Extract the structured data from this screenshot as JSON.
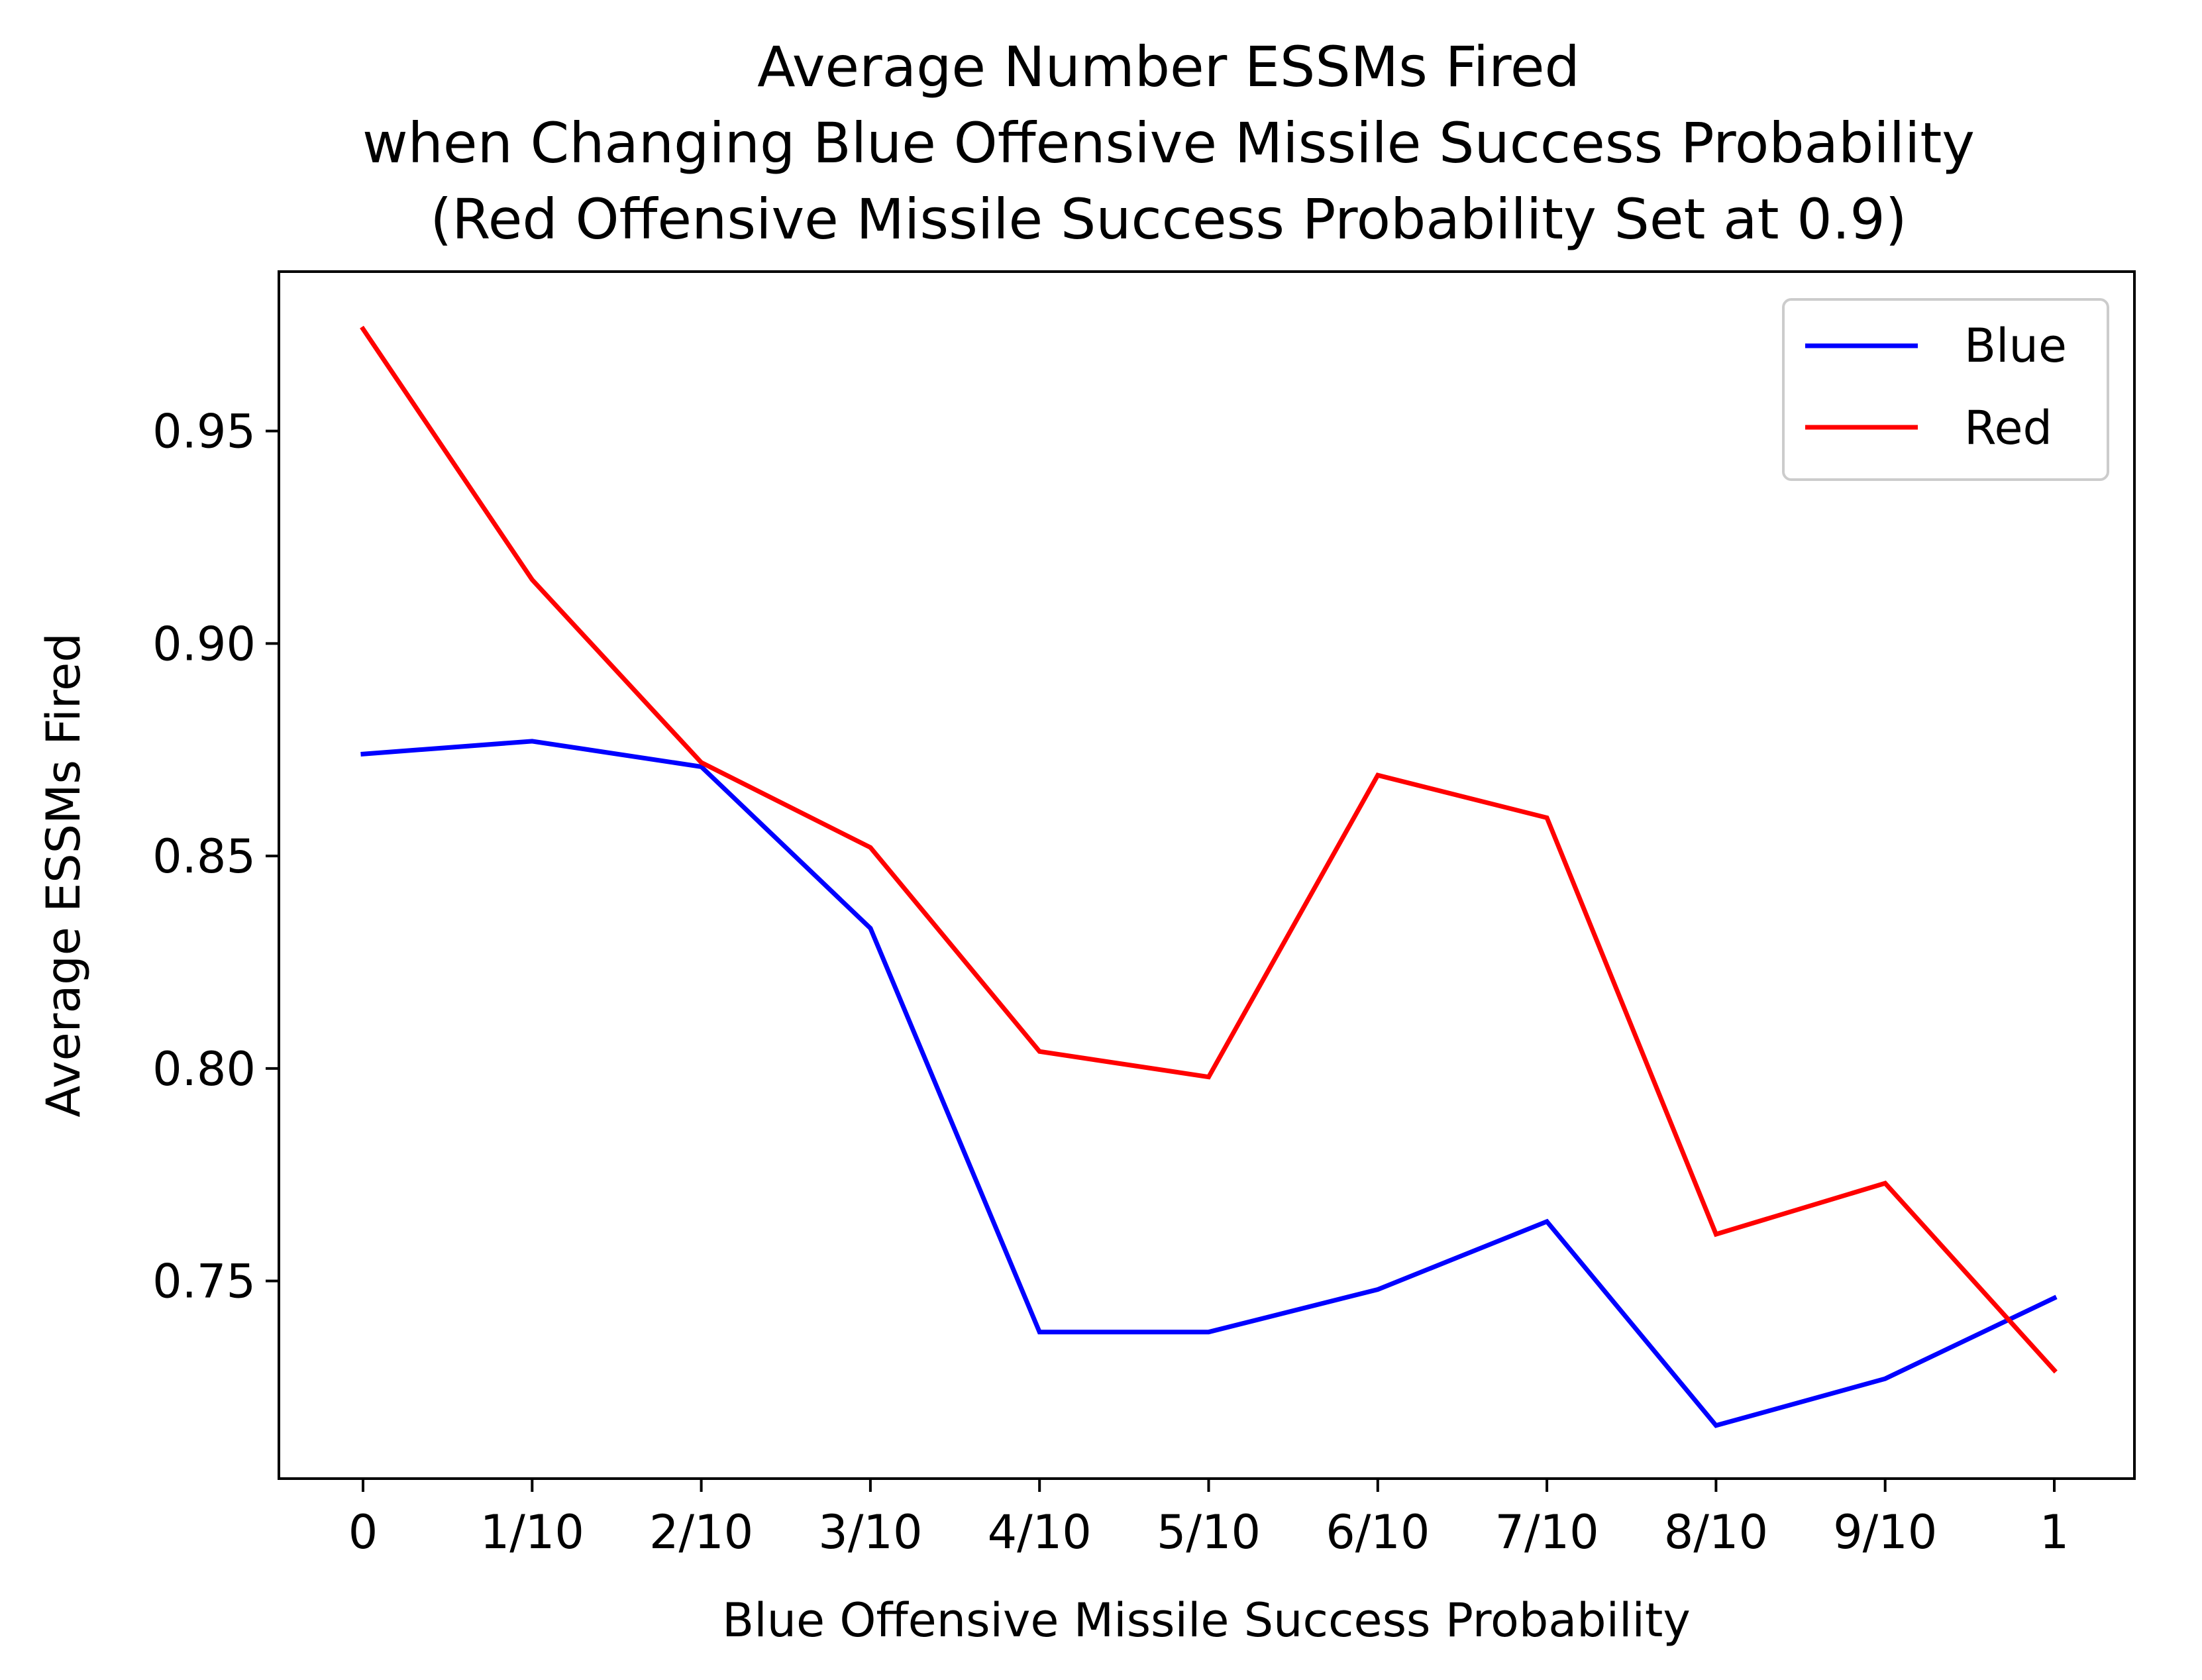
{
  "chart_data": {
    "type": "line",
    "title": "Average Number ESSMs Fired",
    "subtitle_lines": [
      "when Changing Blue Offensive Missile Success Probability",
      "(Red Offensive Missile Success Probability Set at 0.9)"
    ],
    "xlabel": "Blue Offensive Missile Success Probability",
    "ylabel": "Average ESSMs Fired",
    "categories": [
      "0",
      "1/10",
      "2/10",
      "3/10",
      "4/10",
      "5/10",
      "6/10",
      "7/10",
      "8/10",
      "9/10",
      "1"
    ],
    "yticks": [
      0.75,
      0.8,
      0.85,
      0.9,
      0.95
    ],
    "ytick_labels": [
      "0.75",
      "0.80",
      "0.85",
      "0.90",
      "0.95"
    ],
    "ylim": [
      0.7035,
      0.9875
    ],
    "grid": false,
    "legend_position": "upper right",
    "series": [
      {
        "name": "Blue",
        "color": "#0000ff",
        "values": [
          0.874,
          0.877,
          0.871,
          0.833,
          0.738,
          0.738,
          0.748,
          0.764,
          0.716,
          0.727,
          0.746
        ]
      },
      {
        "name": "Red",
        "color": "#ff0000",
        "values": [
          0.974,
          0.915,
          0.872,
          0.852,
          0.804,
          0.798,
          0.869,
          0.859,
          0.761,
          0.773,
          0.729
        ]
      }
    ]
  }
}
